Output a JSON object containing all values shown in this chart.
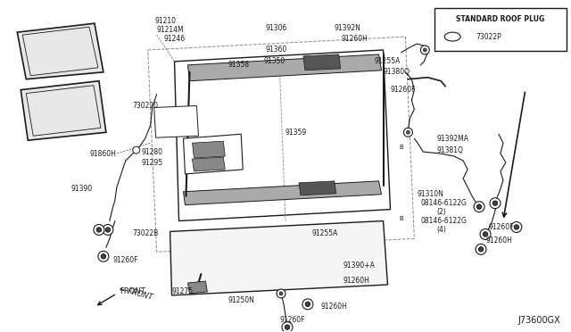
{
  "bg_color": "#ffffff",
  "line_color": "#1a1a1a",
  "fig_width": 6.4,
  "fig_height": 3.72,
  "dpi": 100,
  "diagram_id": "J73600GX",
  "inset_title": "STANDARD ROOF PLUG",
  "inset_part": "73022P"
}
